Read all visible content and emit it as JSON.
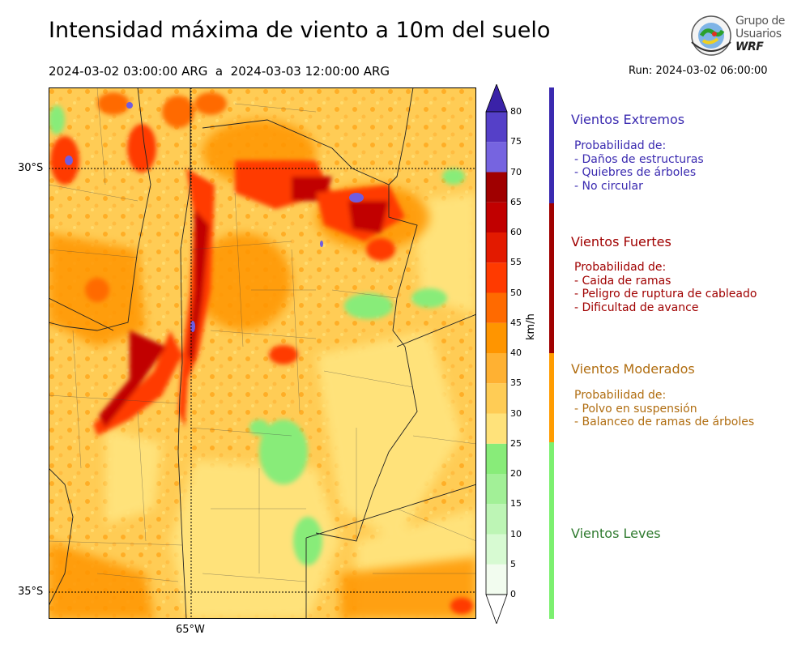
{
  "header": {
    "title": "Intensidad máxima de viento a 10m del suelo",
    "period": "2024-03-02 03:00:00 ARG  a  2024-03-03 12:00:00 ARG",
    "run": "Run: 2024-03-02 06:00:00"
  },
  "logo": {
    "line1": "Grupo de",
    "line2": "Usuarios",
    "line3": "WRF"
  },
  "map": {
    "lat_labels": [
      "30°S",
      "35°S"
    ],
    "lon_labels": [
      "65°W"
    ]
  },
  "colorbar": {
    "unit": "km/h",
    "ticks": [
      "0",
      "5",
      "10",
      "15",
      "20",
      "25",
      "30",
      "35",
      "40",
      "45",
      "50",
      "55",
      "60",
      "65",
      "70",
      "75",
      "80"
    ],
    "colors": [
      "#f2fcef",
      "#d7fad2",
      "#bdf5b5",
      "#a2f097",
      "#88ec79",
      "#ffe27a",
      "#ffcc55",
      "#ffb132",
      "#ff9500",
      "#ff6a00",
      "#ff3a00",
      "#e31a00",
      "#c10000",
      "#a00000",
      "#7664e0",
      "#5540c8",
      "#3a22a8"
    ],
    "extend_low": "#ffffff",
    "extend_high": "#3a22a8"
  },
  "categories": [
    {
      "title": "Vientos Extremos",
      "color": "#3a2ab0",
      "desc": [
        " Probabilidad de:",
        " - Daños de estructuras",
        " - Quiebres de árboles",
        " - No circular"
      ]
    },
    {
      "title": "Vientos Fuertes",
      "color": "#a00000",
      "desc": [
        " Probabilidad de:",
        " - Caida de ramas",
        " - Peligro de ruptura de cableado",
        " - Dificultad de avance"
      ]
    },
    {
      "title": "Vientos Moderados",
      "color": "#b06d10",
      "desc": [
        " Probabilidad de:",
        " - Polvo en suspensión",
        " - Balanceo de ramas de árboles"
      ]
    },
    {
      "title": "Vientos Leves",
      "color": "#2f7a2f",
      "desc": []
    }
  ],
  "side_bars": [
    {
      "name": "extremos",
      "color": "#3a2ab0"
    },
    {
      "name": "fuertes",
      "color": "#a00000"
    },
    {
      "name": "moderados",
      "color": "#ff9c00"
    },
    {
      "name": "leves",
      "color": "#7cf070"
    }
  ]
}
